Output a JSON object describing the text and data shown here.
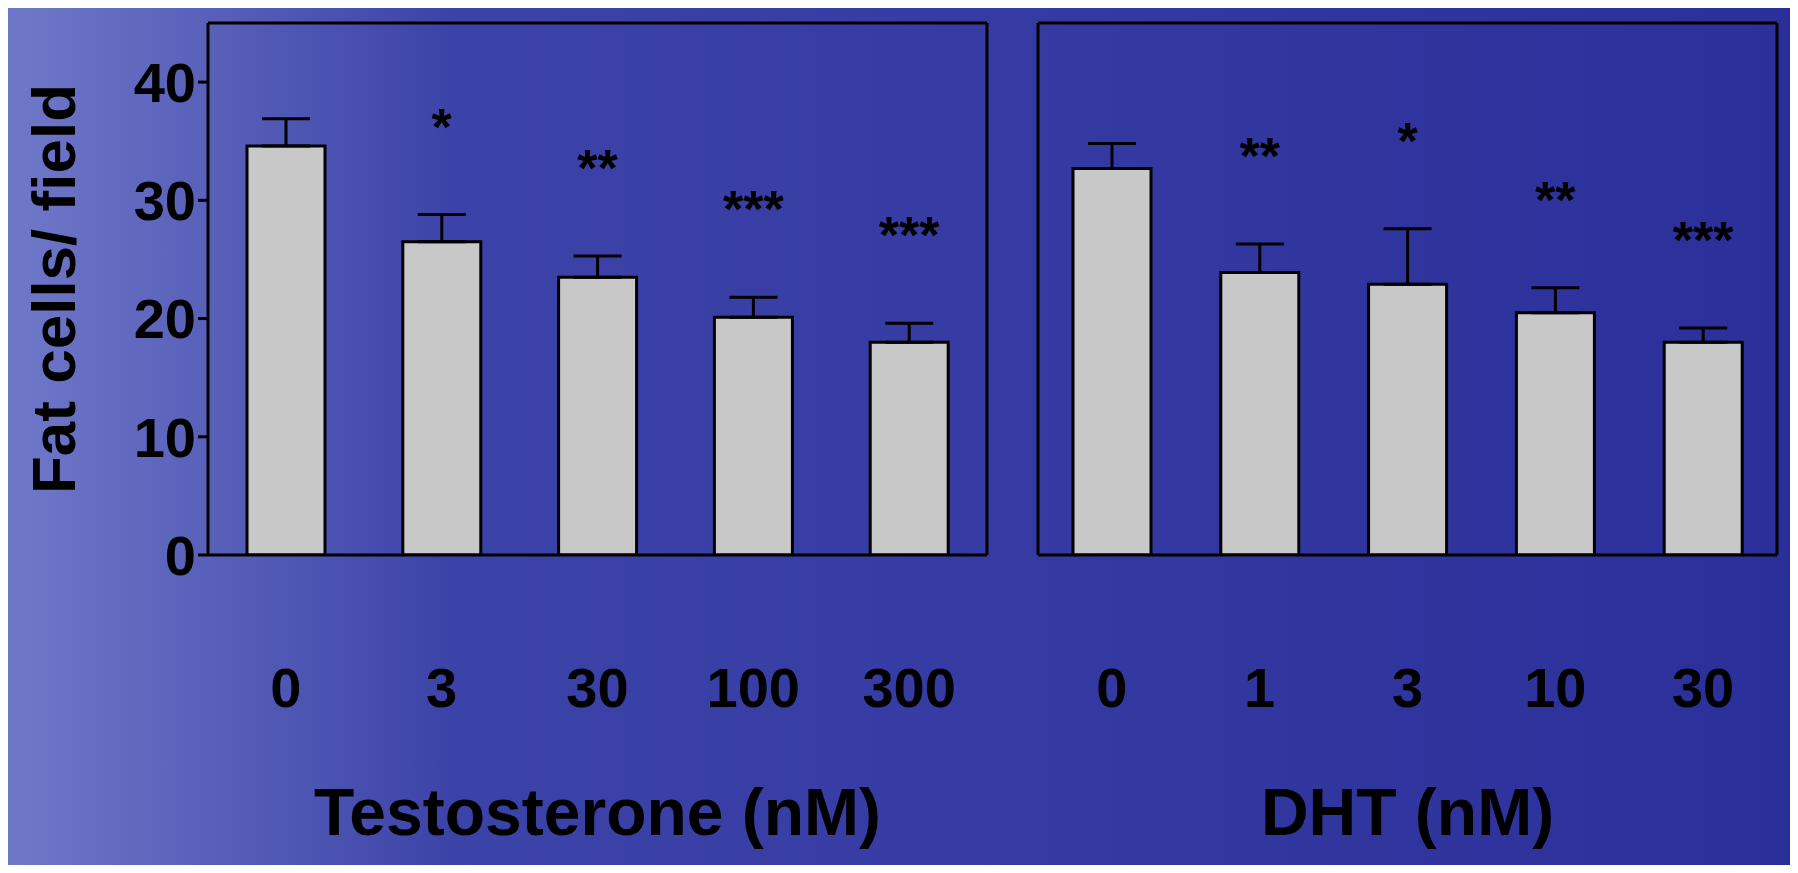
{
  "chart_data": [
    {
      "type": "bar",
      "xlabel": "Testosterone (nM)",
      "ylabel": "Fat cells/ field",
      "categories": [
        "0",
        "3",
        "30",
        "100",
        "300"
      ],
      "values": [
        34.6,
        26.5,
        23.5,
        20.1,
        18.0
      ],
      "errors": [
        [
          34.6,
          36.9
        ],
        [
          26.5,
          28.8
        ],
        [
          23.5,
          25.3
        ],
        [
          20.1,
          21.8
        ],
        [
          18.0,
          19.6
        ]
      ],
      "color": "#c8c8c8",
      "ylim": [
        0,
        45
      ],
      "yticks": [
        0,
        10,
        20,
        30,
        40
      ],
      "grid": false,
      "legend": false,
      "annotations": [
        "*",
        "**",
        "***",
        "***"
      ]
    },
    {
      "type": "bar",
      "xlabel": "DHT (nM)",
      "categories": [
        "0",
        "1",
        "3",
        "10",
        "30"
      ],
      "values": [
        32.7,
        23.9,
        22.9,
        20.5,
        18.0
      ],
      "errors": [
        [
          32.7,
          34.8
        ],
        [
          23.9,
          26.3
        ],
        [
          22.9,
          27.6
        ],
        [
          20.5,
          22.6
        ],
        [
          18.0,
          19.2
        ]
      ],
      "color": "#c8c8c8",
      "ylim": [
        0,
        45
      ],
      "yticks": [
        0,
        10,
        20,
        30,
        40
      ],
      "tick_labels": "x",
      "grid": false,
      "legend": false,
      "annotations": [
        "**",
        "*",
        "**",
        "***"
      ]
    }
  ]
}
